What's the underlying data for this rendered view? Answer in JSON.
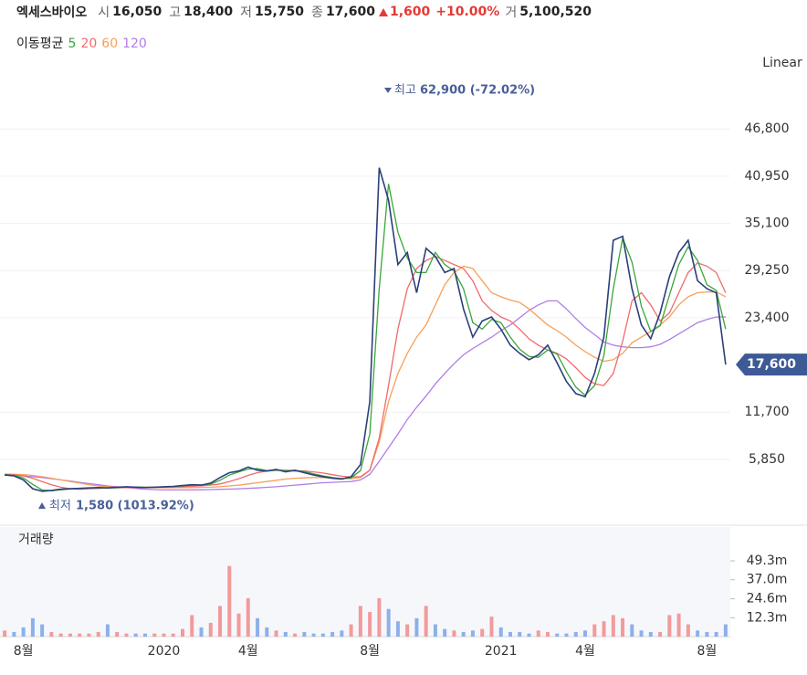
{
  "header": {
    "name": "엑세스바이오",
    "quote": [
      {
        "label": "시",
        "value": "16,050"
      },
      {
        "label": "고",
        "value": "18,400"
      },
      {
        "label": "저",
        "value": "15,750"
      },
      {
        "label": "종",
        "value": "17,600"
      }
    ],
    "change": "1,600",
    "change_pct": "+10.00%",
    "volume_label": "거",
    "volume": "5,100,520"
  },
  "chart_data": [
    {
      "type": "line",
      "legend_title": "이동평균",
      "scale_label": "Linear",
      "categories": [
        null,
        null,
        "8월",
        null,
        null,
        null,
        null,
        null,
        null,
        null,
        null,
        null,
        null,
        null,
        null,
        null,
        null,
        "2020",
        null,
        null,
        null,
        null,
        null,
        null,
        null,
        null,
        "4월",
        null,
        null,
        null,
        null,
        null,
        null,
        null,
        null,
        null,
        null,
        null,
        null,
        "8월",
        null,
        null,
        null,
        null,
        null,
        null,
        null,
        null,
        null,
        null,
        null,
        null,
        null,
        "2021",
        null,
        null,
        null,
        null,
        null,
        null,
        null,
        null,
        "4월",
        null,
        null,
        null,
        null,
        null,
        null,
        null,
        null,
        null,
        null,
        null,
        null,
        "8월",
        null,
        null
      ],
      "series": [
        {
          "color": "#2b3f7a",
          "values": [
            3900,
            3800,
            3300,
            2200,
            1900,
            2000,
            2150,
            2200,
            2250,
            2300,
            2350,
            2300,
            2400,
            2450,
            2400,
            2350,
            2400,
            2450,
            2500,
            2600,
            2700,
            2650,
            2900,
            3600,
            4200,
            4400,
            4900,
            4500,
            4400,
            4600,
            4300,
            4500,
            4200,
            3900,
            3700,
            3500,
            3400,
            3700,
            5200,
            13000,
            42000,
            38000,
            30000,
            31500,
            26500,
            32000,
            31000,
            29000,
            29500,
            24500,
            21000,
            23000,
            23500,
            22000,
            20000,
            19000,
            18200,
            18800,
            20000,
            17800,
            15500,
            14000,
            13600,
            16500,
            21000,
            33000,
            33500,
            27000,
            22500,
            20800,
            24000,
            28500,
            31500,
            33000,
            28000,
            27000,
            26500,
            17600
          ]
        },
        {
          "name": "5",
          "color": "#3aa63a",
          "values": [
            3950,
            3850,
            3550,
            2750,
            2050,
            1950,
            2080,
            2180,
            2230,
            2280,
            2330,
            2320,
            2350,
            2430,
            2420,
            2380,
            2380,
            2430,
            2480,
            2550,
            2650,
            2680,
            2780,
            3250,
            3900,
            4300,
            4650,
            4700,
            4450,
            4500,
            4450,
            4400,
            4350,
            4050,
            3800,
            3600,
            3450,
            3550,
            4450,
            9000,
            27000,
            40000,
            34000,
            30800,
            29000,
            29000,
            31500,
            30000,
            29200,
            27000,
            22800,
            22000,
            23200,
            22800,
            21000,
            19500,
            18600,
            18500,
            19400,
            18900,
            16700,
            14800,
            13800,
            15000,
            18700,
            27000,
            33300,
            30300,
            24800,
            21700,
            22400,
            26200,
            30000,
            32200,
            30500,
            27500,
            26800,
            22000
          ]
        },
        {
          "name": "20",
          "color": "#f06a6a",
          "values": [
            4000,
            3950,
            3800,
            3500,
            3100,
            2700,
            2400,
            2200,
            2150,
            2200,
            2250,
            2300,
            2310,
            2350,
            2400,
            2400,
            2400,
            2400,
            2420,
            2460,
            2520,
            2580,
            2650,
            2800,
            3100,
            3450,
            3850,
            4200,
            4400,
            4500,
            4500,
            4450,
            4400,
            4300,
            4150,
            3950,
            3750,
            3650,
            3700,
            4500,
            8500,
            15000,
            22000,
            27000,
            29500,
            30500,
            31000,
            30500,
            30000,
            29500,
            28000,
            25500,
            24300,
            23500,
            23000,
            22000,
            20800,
            20000,
            19400,
            19000,
            18300,
            17200,
            16000,
            15200,
            15000,
            16500,
            20500,
            25500,
            26500,
            25000,
            23000,
            24000,
            26500,
            29000,
            30200,
            29800,
            29000,
            26500
          ]
        },
        {
          "name": "60",
          "color": "#f5a05a",
          "values": [
            4000,
            3990,
            3950,
            3850,
            3700,
            3500,
            3300,
            3100,
            2900,
            2700,
            2550,
            2450,
            2400,
            2380,
            2360,
            2350,
            2340,
            2330,
            2330,
            2340,
            2350,
            2380,
            2400,
            2450,
            2550,
            2650,
            2800,
            2950,
            3100,
            3250,
            3400,
            3500,
            3550,
            3600,
            3600,
            3550,
            3500,
            3450,
            3600,
            4500,
            8000,
            13000,
            16500,
            19000,
            21000,
            22500,
            25000,
            27500,
            29000,
            29800,
            29500,
            28000,
            26500,
            26000,
            25600,
            25300,
            24500,
            23500,
            22500,
            21800,
            21000,
            20000,
            19200,
            18500,
            18000,
            18200,
            19000,
            20300,
            21000,
            21700,
            22500,
            23500,
            25000,
            26000,
            26500,
            26600,
            26600,
            26000
          ]
        },
        {
          "name": "120",
          "color": "#b07de8",
          "values": [
            3950,
            3900,
            3800,
            3700,
            3600,
            3450,
            3300,
            3150,
            3000,
            2850,
            2700,
            2550,
            2450,
            2350,
            2250,
            2150,
            2100,
            2050,
            2050,
            2050,
            2060,
            2080,
            2100,
            2130,
            2160,
            2200,
            2250,
            2300,
            2380,
            2450,
            2550,
            2650,
            2750,
            2850,
            2950,
            3000,
            3050,
            3100,
            3300,
            4000,
            5600,
            7300,
            9000,
            10800,
            12300,
            13700,
            15200,
            16500,
            17700,
            18800,
            19600,
            20300,
            21000,
            21800,
            22500,
            23400,
            24300,
            25000,
            25500,
            25500,
            24500,
            23300,
            22200,
            21300,
            20400,
            20000,
            19800,
            19700,
            19700,
            19800,
            20100,
            20700,
            21400,
            22100,
            22800,
            23200,
            23500,
            23500
          ]
        }
      ],
      "ylim": [
        -1750,
        56000
      ],
      "yticks": [
        {
          "value": 5850,
          "label": "5,850"
        },
        {
          "value": 11700,
          "label": "11,700"
        },
        {
          "value": 23400,
          "label": "23,400"
        },
        {
          "value": 29250,
          "label": "29,250"
        },
        {
          "value": 35100,
          "label": "35,100"
        },
        {
          "value": 40950,
          "label": "40,950"
        },
        {
          "value": 46800,
          "label": "46,800"
        }
      ],
      "grid": true,
      "last_price": {
        "value": 17600,
        "label": "17,600",
        "color": "#3d5a96"
      },
      "high": {
        "label": "최고",
        "text": "62,900 (-72.02%)"
      },
      "low": {
        "label": "최저",
        "text": "1,580 (1013.92%)"
      }
    },
    {
      "type": "bar",
      "title": "거래량",
      "values": [
        4000000,
        3000000,
        6000000,
        12000000,
        8000000,
        3000000,
        2000000,
        2000000,
        2000000,
        2000000,
        3000000,
        8000000,
        3000000,
        2000000,
        2000000,
        2000000,
        2000000,
        2000000,
        2000000,
        5000000,
        14000000,
        6000000,
        9000000,
        20000000,
        46000000,
        15000000,
        25000000,
        12000000,
        6000000,
        4000000,
        3000000,
        2000000,
        3000000,
        2000000,
        2000000,
        3000000,
        4000000,
        8000000,
        20000000,
        16000000,
        25000000,
        18000000,
        10000000,
        8000000,
        12000000,
        20000000,
        8000000,
        5000000,
        4000000,
        3000000,
        4000000,
        5000000,
        13000000,
        6000000,
        3000000,
        3000000,
        2000000,
        4000000,
        3000000,
        2000000,
        2000000,
        3000000,
        4000000,
        8000000,
        10000000,
        14000000,
        12000000,
        8000000,
        4000000,
        3000000,
        3000000,
        14000000,
        15000000,
        8000000,
        4000000,
        3000000,
        3000000,
        8000000
      ],
      "up_color": "#f29a9a",
      "down_color": "#8cb0ea",
      "ylim": [
        0,
        71300000
      ],
      "yticks": [
        {
          "value": 12300000,
          "label": "12.3m"
        },
        {
          "value": 24600000,
          "label": "24.6m"
        },
        {
          "value": 37000000,
          "label": "37.0m"
        },
        {
          "value": 49300000,
          "label": "49.3m"
        }
      ]
    }
  ]
}
